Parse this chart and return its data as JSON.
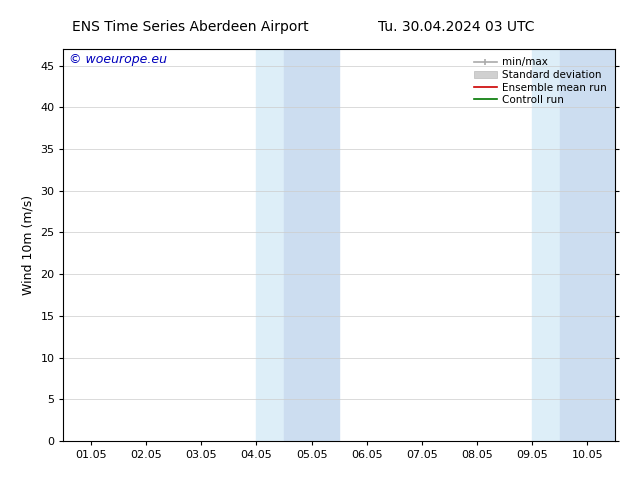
{
  "title_left": "ENS Time Series Aberdeen Airport",
  "title_right": "Tu. 30.04.2024 03 UTC",
  "ylabel": "Wind 10m (m/s)",
  "watermark": "© woeurope.eu",
  "xtick_labels": [
    "01.05",
    "02.05",
    "03.05",
    "04.05",
    "05.05",
    "06.05",
    "07.05",
    "08.05",
    "09.05",
    "10.05"
  ],
  "ytick_values": [
    0,
    5,
    10,
    15,
    20,
    25,
    30,
    35,
    40,
    45
  ],
  "ymax": 47,
  "ymin": 0,
  "xmin": -0.5,
  "xmax": 9.5,
  "shaded_bands": [
    {
      "x_start": 3.0,
      "x_end": 3.5,
      "color": "#ddeef8"
    },
    {
      "x_start": 3.5,
      "x_end": 4.5,
      "color": "#ccddf0"
    },
    {
      "x_start": 8.0,
      "x_end": 8.5,
      "color": "#ddeef8"
    },
    {
      "x_start": 8.5,
      "x_end": 9.5,
      "color": "#ccddf0"
    }
  ],
  "background_color": "#ffffff",
  "plot_bg_color": "#ffffff",
  "font_size": 9,
  "title_fontsize": 10,
  "watermark_color": "#0000bb",
  "grid_color": "#cccccc",
  "tick_label_fontsize": 8,
  "ylabel_fontsize": 9
}
